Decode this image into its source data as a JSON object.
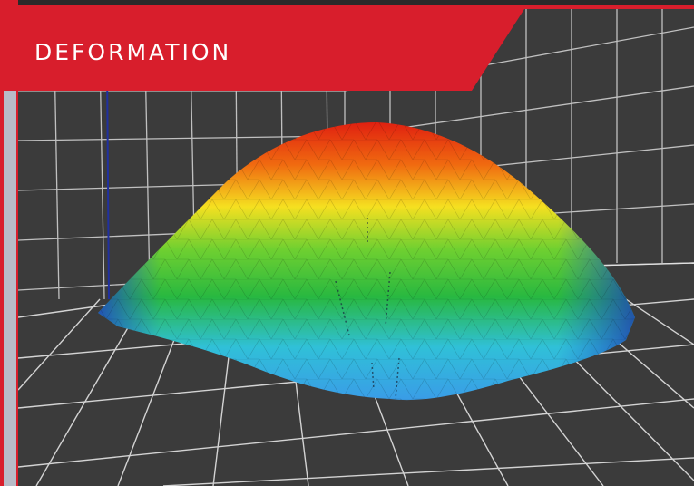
{
  "label": "DEFORMATION"
}
